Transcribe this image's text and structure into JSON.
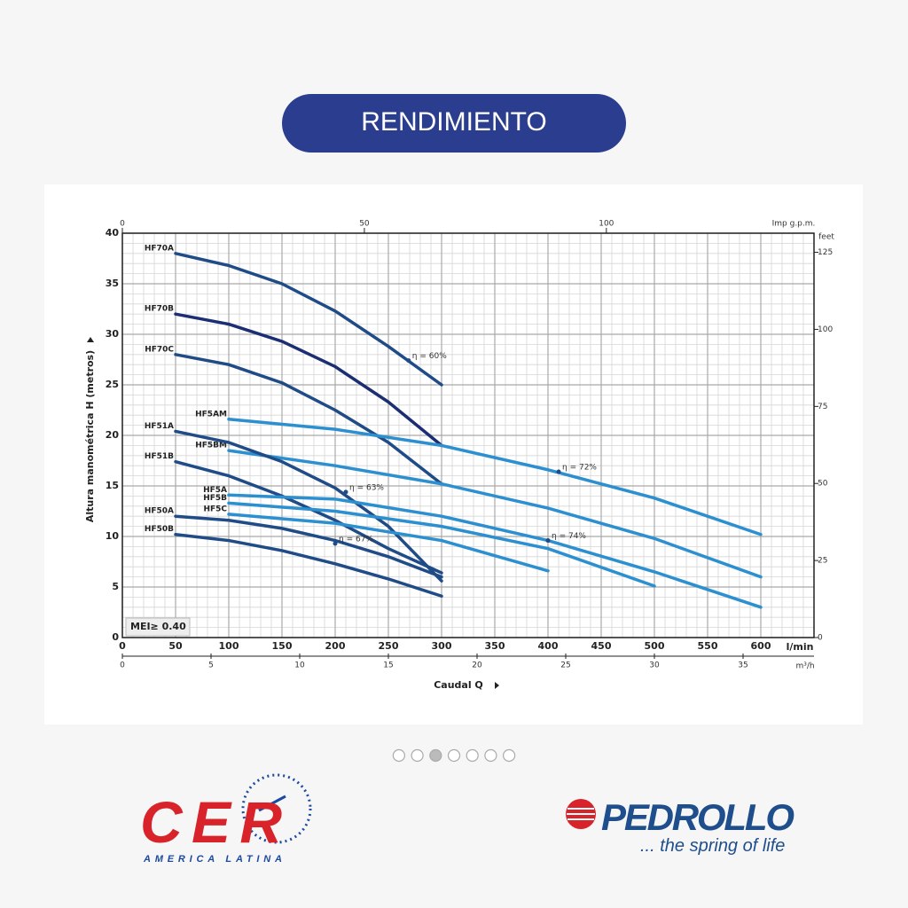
{
  "header": {
    "title": "RENDIMIENTO"
  },
  "chart_data": {
    "type": "line",
    "y_label": "Altura manométrica H (metros)",
    "x_label": "Caudal Q",
    "x_unit": "l/min",
    "xlim": [
      0,
      650
    ],
    "xticks": [
      0,
      50,
      100,
      150,
      200,
      250,
      300,
      350,
      400,
      450,
      500,
      550,
      600
    ],
    "ylim": [
      0,
      40
    ],
    "yticks": [
      0,
      5,
      10,
      15,
      20,
      25,
      30,
      35,
      40
    ],
    "x2_label": "Imp g.p.m.",
    "x2lim": [
      0,
      142.9
    ],
    "x2ticks": [
      0,
      50,
      100
    ],
    "x3_label": "m³/h",
    "x3lim": [
      0,
      39
    ],
    "x3ticks": [
      0,
      5,
      10,
      15,
      20,
      25,
      30,
      35
    ],
    "y2_label": "feet",
    "y2lim": [
      0,
      131.2
    ],
    "y2ticks": [
      0,
      25,
      50,
      75,
      100,
      125
    ],
    "grid": true,
    "badge": "MEI≥ 0.40",
    "series": [
      {
        "name": "HF70A",
        "color": "#1f4b87",
        "x": [
          50,
          100,
          150,
          200,
          250,
          300
        ],
        "values": [
          38,
          36.8,
          35,
          32.3,
          28.8,
          25
        ]
      },
      {
        "name": "HF70B",
        "color": "#1c2e73",
        "x": [
          50,
          100,
          150,
          200,
          250,
          300
        ],
        "values": [
          32,
          31,
          29.3,
          26.8,
          23.3,
          19
        ]
      },
      {
        "name": "HF70C",
        "color": "#1f4b87",
        "x": [
          50,
          100,
          150,
          200,
          250,
          300
        ],
        "values": [
          28,
          27,
          25.2,
          22.5,
          19.3,
          15.2
        ]
      },
      {
        "name": "HF5AM",
        "color": "#2b8fd0",
        "x": [
          100,
          200,
          300,
          400,
          500,
          600
        ],
        "values": [
          21.6,
          20.6,
          19,
          16.6,
          13.8,
          10.2
        ]
      },
      {
        "name": "HF5BM",
        "color": "#2b8fd0",
        "x": [
          100,
          200,
          300,
          400,
          500,
          600
        ],
        "values": [
          18.5,
          17,
          15.2,
          12.8,
          9.8,
          6
        ]
      },
      {
        "name": "HF51A",
        "color": "#1f4b87",
        "x": [
          50,
          100,
          150,
          200,
          250,
          300
        ],
        "values": [
          20.4,
          19.3,
          17.4,
          14.8,
          11,
          5.6
        ]
      },
      {
        "name": "HF51B",
        "color": "#1f4b87",
        "x": [
          50,
          100,
          150,
          200,
          250,
          300
        ],
        "values": [
          17.4,
          16,
          14,
          11.6,
          8.8,
          6.4
        ]
      },
      {
        "name": "HF5A",
        "color": "#2b8fd0",
        "x": [
          100,
          200,
          300,
          400,
          500,
          600
        ],
        "values": [
          14.1,
          13.7,
          12,
          9.6,
          6.5,
          3
        ]
      },
      {
        "name": "HF5B",
        "color": "#2b8fd0",
        "x": [
          100,
          200,
          300,
          400,
          500
        ],
        "values": [
          13.3,
          12.5,
          11,
          8.8,
          5.1
        ]
      },
      {
        "name": "HF5C",
        "color": "#2b8fd0",
        "x": [
          100,
          200,
          300,
          400
        ],
        "values": [
          12.2,
          11.3,
          9.6,
          6.6
        ]
      },
      {
        "name": "HF50A",
        "color": "#1f4b87",
        "x": [
          50,
          100,
          150,
          200,
          250,
          300
        ],
        "values": [
          12,
          11.6,
          10.8,
          9.6,
          8,
          6
        ]
      },
      {
        "name": "HF50B",
        "color": "#1f4b87",
        "x": [
          50,
          100,
          150,
          200,
          250,
          300
        ],
        "values": [
          10.2,
          9.6,
          8.6,
          7.3,
          5.8,
          4.1
        ]
      }
    ],
    "annotations": [
      {
        "text": "η = 60%",
        "x": 269,
        "y": 27.4
      },
      {
        "text": "η = 63%",
        "x": 210,
        "y": 14.4
      },
      {
        "text": "η = 67%",
        "x": 200,
        "y": 9.3
      },
      {
        "text": "η = 72%",
        "x": 410,
        "y": 16.4
      },
      {
        "text": "η = 74%",
        "x": 400,
        "y": 9.6
      }
    ]
  },
  "carousel": {
    "slides": 7,
    "active": 2
  },
  "footer": {
    "logos": [
      {
        "text": "CER",
        "subtitle": "AMERICA LATINA"
      },
      {
        "text": "PEDROLLO",
        "subtitle": "... the spring of life"
      }
    ]
  }
}
